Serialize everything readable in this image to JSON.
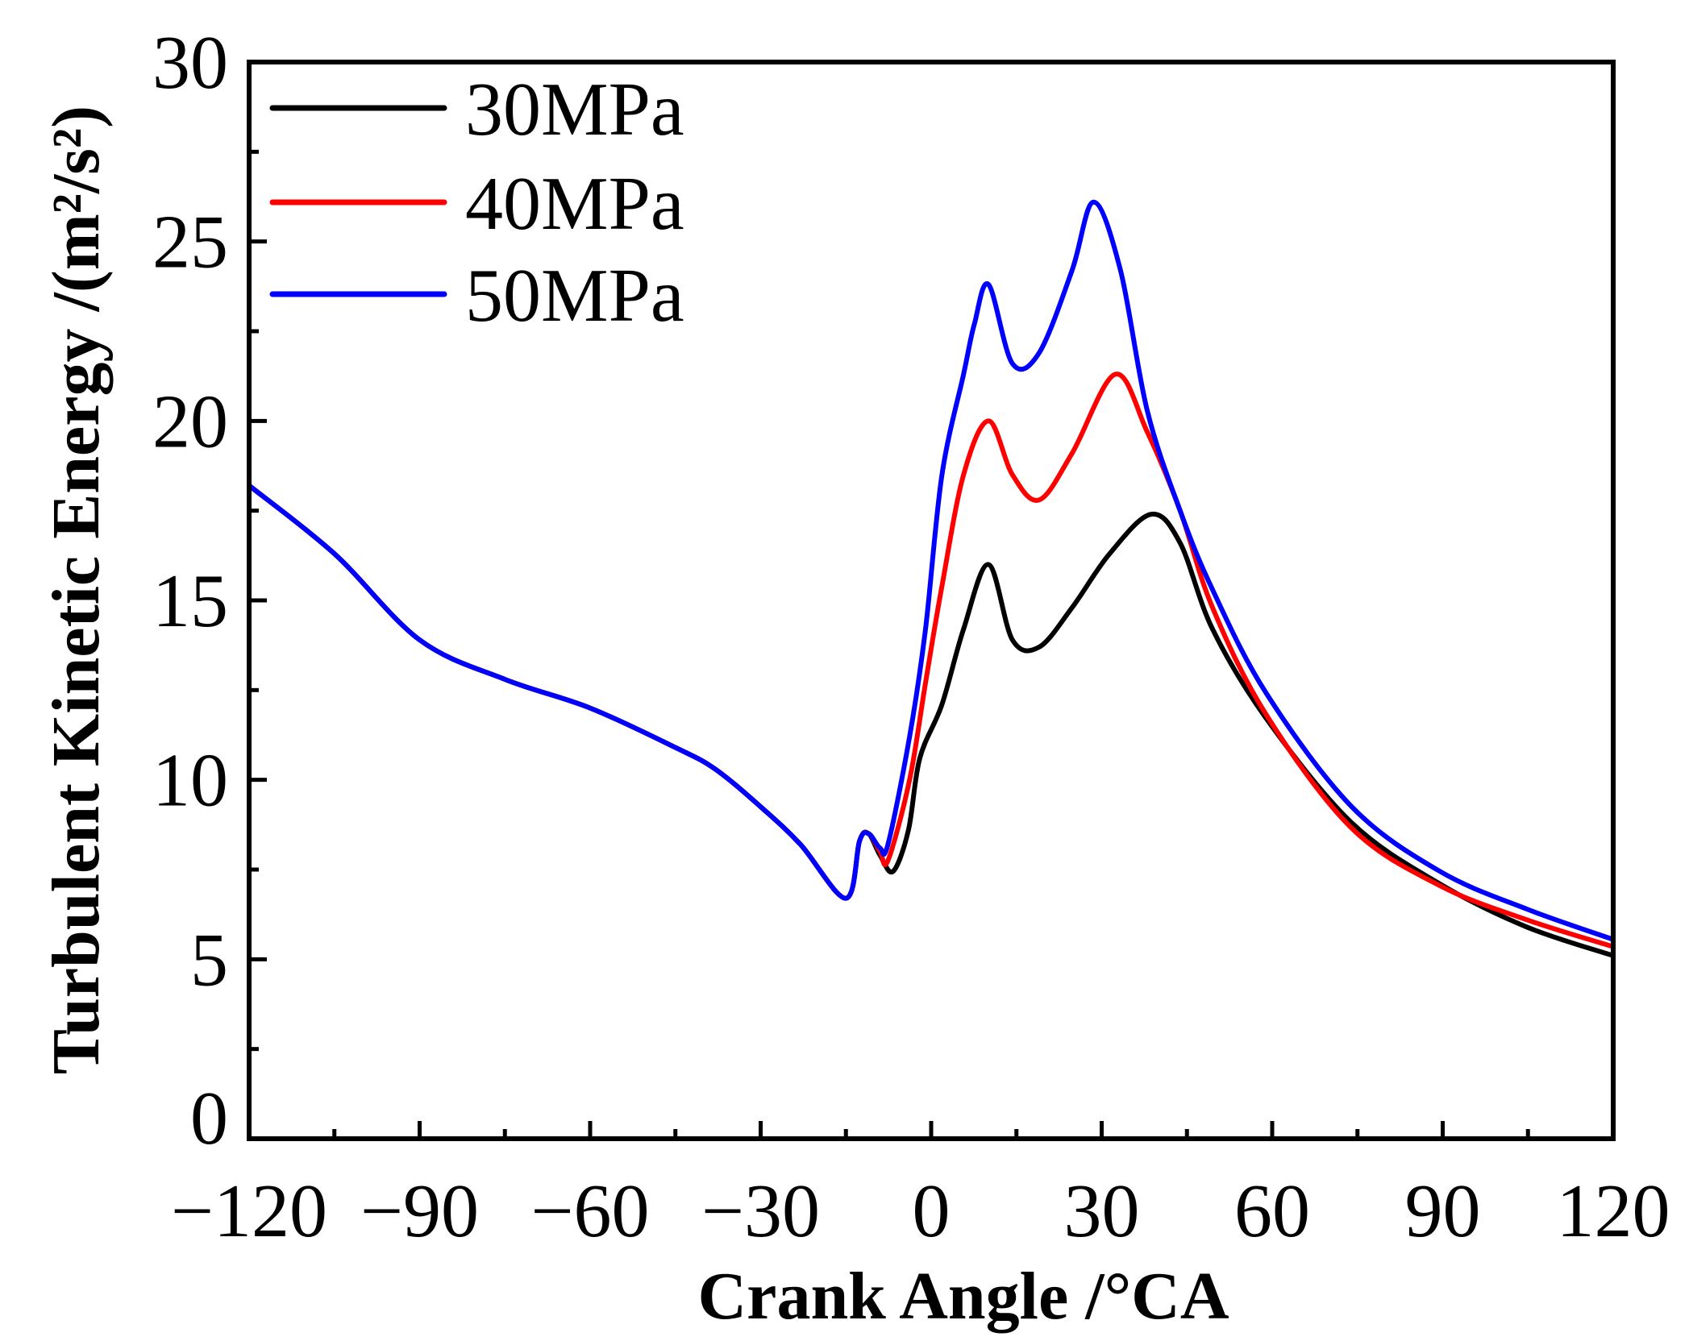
{
  "chart_data": {
    "type": "line",
    "title": "",
    "xlabel": "Crank Angle /°CA",
    "ylabel": "Turbulent Kinetic Energy /(m²/s²)",
    "xlim": [
      -120,
      120
    ],
    "ylim": [
      0,
      30
    ],
    "xticks": [
      -120,
      -90,
      -60,
      -30,
      0,
      30,
      60,
      90,
      120
    ],
    "xtick_labels": [
      "−120",
      "−90",
      "−60",
      "−30",
      "0",
      "30",
      "60",
      "90",
      "120"
    ],
    "yticks": [
      0,
      5,
      10,
      15,
      20,
      25,
      30
    ],
    "ytick_labels": [
      "0",
      "5",
      "10",
      "15",
      "20",
      "25",
      "30"
    ],
    "grid": false,
    "legend_position": "top-left",
    "series": [
      {
        "name": "30MPa",
        "color": "#000000",
        "x": [
          -120,
          -105,
          -90,
          -75,
          -60,
          -45,
          -38,
          -30,
          -23,
          -15,
          -12.6,
          -11,
          -9,
          -6.7,
          -4,
          -2,
          1.9,
          5.7,
          10.1,
          14.3,
          19,
          24.8,
          31.4,
          38.7,
          43.8,
          49.5,
          59,
          74,
          89.5,
          104.8,
          120
        ],
        "y": [
          18.2,
          16.3,
          13.9,
          12.8,
          12.0,
          10.9,
          10.3,
          9.25,
          8.2,
          6.7,
          8.3,
          8.5,
          7.9,
          7.45,
          8.6,
          10.6,
          12.1,
          14.2,
          16.0,
          13.9,
          13.7,
          14.8,
          16.3,
          17.4,
          16.6,
          14.2,
          11.7,
          8.8,
          7.1,
          5.9,
          5.1
        ]
      },
      {
        "name": "40MPa",
        "color": "#ff0000",
        "x": [
          -120,
          -105,
          -90,
          -75,
          -60,
          -45,
          -38,
          -30,
          -23,
          -15,
          -12.6,
          -11,
          -9,
          -7.6,
          -3.8,
          -1,
          1.9,
          5.7,
          10.1,
          14.3,
          19,
          24.8,
          32.4,
          38,
          43.8,
          49.5,
          59,
          74,
          89.5,
          104.8,
          120
        ],
        "y": [
          18.2,
          16.3,
          13.9,
          12.8,
          12.0,
          10.9,
          10.3,
          9.25,
          8.2,
          6.7,
          8.3,
          8.5,
          8.0,
          7.75,
          10.0,
          12.7,
          15.4,
          18.5,
          20.0,
          18.5,
          17.8,
          19.1,
          21.3,
          19.7,
          17.5,
          14.8,
          11.8,
          8.65,
          7.05,
          6.1,
          5.35
        ]
      },
      {
        "name": "50MPa",
        "color": "#0000ff",
        "x": [
          -120,
          -105,
          -90,
          -75,
          -60,
          -45,
          -38,
          -30,
          -23,
          -15,
          -12.6,
          -11,
          -9,
          -7.6,
          -3.8,
          -1,
          1.9,
          5.7,
          7.6,
          10.1,
          14.3,
          19,
          24.8,
          28.6,
          33.3,
          38,
          43.8,
          49.5,
          59,
          74,
          89.5,
          104.8,
          120
        ],
        "y": [
          18.2,
          16.3,
          13.9,
          12.8,
          12.0,
          10.9,
          10.3,
          9.25,
          8.2,
          6.7,
          8.3,
          8.5,
          8.1,
          8.2,
          11.2,
          14.2,
          18.5,
          21.3,
          22.7,
          23.8,
          21.6,
          21.9,
          24.2,
          26.1,
          24.2,
          20.3,
          17.5,
          15.3,
          12.4,
          9.25,
          7.45,
          6.4,
          5.55
        ]
      }
    ]
  }
}
